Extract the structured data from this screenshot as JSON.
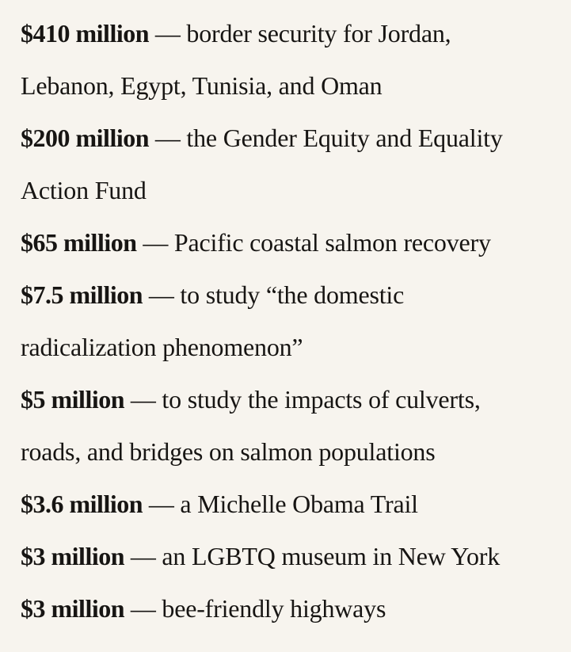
{
  "page": {
    "background_color": "#f7f4ee",
    "text_color": "#171513"
  },
  "items": [
    {
      "amount": "$410 million",
      "rest": " — border security for Jordan,",
      "lines": [
        "Lebanon, Egypt, Tunisia, and Oman"
      ]
    },
    {
      "amount": "$200 million",
      "rest": " — the Gender Equity and Equality",
      "lines": [
        "Action Fund"
      ]
    },
    {
      "amount": "$65 million",
      "rest": " — Pacific coastal salmon recovery",
      "lines": []
    },
    {
      "amount": "$7.5 million",
      "rest": " — to study “the domestic",
      "lines": [
        "radicalization phenomenon”"
      ]
    },
    {
      "amount": "$5 million",
      "rest": " — to study the impacts of culverts,",
      "lines": [
        "roads, and bridges on salmon populations"
      ]
    },
    {
      "amount": "$3.6 million",
      "rest": " — a Michelle Obama Trail",
      "lines": []
    },
    {
      "amount": "$3 million",
      "rest": " — an LGBTQ museum in New York",
      "lines": []
    },
    {
      "amount": "$3 million",
      "rest": " — bee-friendly highways",
      "lines": []
    }
  ]
}
